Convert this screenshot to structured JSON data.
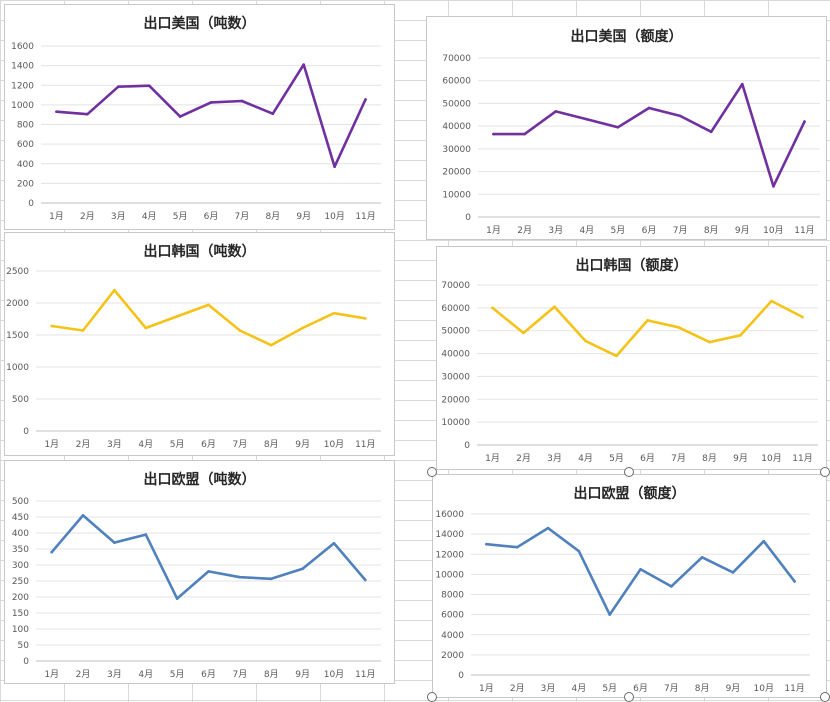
{
  "chart_data": [
    {
      "type": "line",
      "title": "出口美国（吨数）",
      "categories": [
        "1月",
        "2月",
        "3月",
        "4月",
        "5月",
        "6月",
        "7月",
        "8月",
        "9月",
        "10月",
        "11月"
      ],
      "series": [
        {
          "values": [
            930,
            905,
            1185,
            1195,
            880,
            1025,
            1040,
            910,
            1410,
            370,
            1055
          ]
        }
      ],
      "ylim": [
        0,
        1600
      ],
      "yticks": [
        0,
        200,
        400,
        600,
        800,
        1000,
        1200,
        1400,
        1600
      ],
      "color": "#7030a0",
      "grid": true
    },
    {
      "type": "line",
      "title": "出口美国（额度）",
      "categories": [
        "1月",
        "2月",
        "3月",
        "4月",
        "5月",
        "6月",
        "7月",
        "8月",
        "9月",
        "10月",
        "11月"
      ],
      "series": [
        {
          "values": [
            36500,
            36500,
            46500,
            43000,
            39500,
            48000,
            44500,
            37500,
            58500,
            13500,
            42000
          ]
        }
      ],
      "ylim": [
        0,
        70000
      ],
      "yticks": [
        0,
        10000,
        20000,
        30000,
        40000,
        50000,
        60000,
        70000
      ],
      "color": "#7030a0",
      "grid": true
    },
    {
      "type": "line",
      "title": "出口韩国（吨数）",
      "categories": [
        "1月",
        "2月",
        "3月",
        "4月",
        "5月",
        "6月",
        "7月",
        "8月",
        "9月",
        "10月",
        "11月"
      ],
      "series": [
        {
          "values": [
            1640,
            1570,
            2200,
            1610,
            1790,
            1970,
            1570,
            1340,
            1610,
            1840,
            1760
          ]
        }
      ],
      "ylim": [
        0,
        2500
      ],
      "yticks": [
        0,
        500,
        1000,
        1500,
        2000,
        2500
      ],
      "color": "#f5c218",
      "grid": true
    },
    {
      "type": "line",
      "title": "出口韩国（额度）",
      "categories": [
        "1月",
        "2月",
        "3月",
        "4月",
        "5月",
        "6月",
        "7月",
        "8月",
        "9月",
        "10月",
        "11月"
      ],
      "series": [
        {
          "values": [
            60000,
            49000,
            60500,
            45500,
            39000,
            54500,
            51500,
            45000,
            48000,
            63000,
            56000
          ]
        }
      ],
      "ylim": [
        0,
        70000
      ],
      "yticks": [
        0,
        10000,
        20000,
        30000,
        40000,
        50000,
        60000,
        70000
      ],
      "color": "#f5c218",
      "grid": true
    },
    {
      "type": "line",
      "title": "出口欧盟（吨数）",
      "categories": [
        "1月",
        "2月",
        "3月",
        "4月",
        "5月",
        "6月",
        "7月",
        "8月",
        "9月",
        "10月",
        "11月"
      ],
      "series": [
        {
          "values": [
            340,
            455,
            370,
            395,
            195,
            280,
            262,
            257,
            288,
            368,
            253
          ]
        }
      ],
      "ylim": [
        0,
        500
      ],
      "yticks": [
        0,
        50,
        100,
        150,
        200,
        250,
        300,
        350,
        400,
        450,
        500
      ],
      "color": "#4f81bd",
      "grid": true
    },
    {
      "type": "line",
      "title": "出口欧盟（额度）",
      "categories": [
        "1月",
        "2月",
        "3月",
        "4月",
        "5月",
        "6月",
        "7月",
        "8月",
        "9月",
        "10月",
        "11月"
      ],
      "series": [
        {
          "values": [
            13000,
            12700,
            14600,
            12300,
            6000,
            10500,
            8800,
            11700,
            10200,
            13300,
            9300
          ]
        }
      ],
      "ylim": [
        0,
        16000
      ],
      "yticks": [
        0,
        2000,
        4000,
        6000,
        8000,
        10000,
        12000,
        14000,
        16000
      ],
      "color": "#4f81bd",
      "grid": true
    }
  ]
}
